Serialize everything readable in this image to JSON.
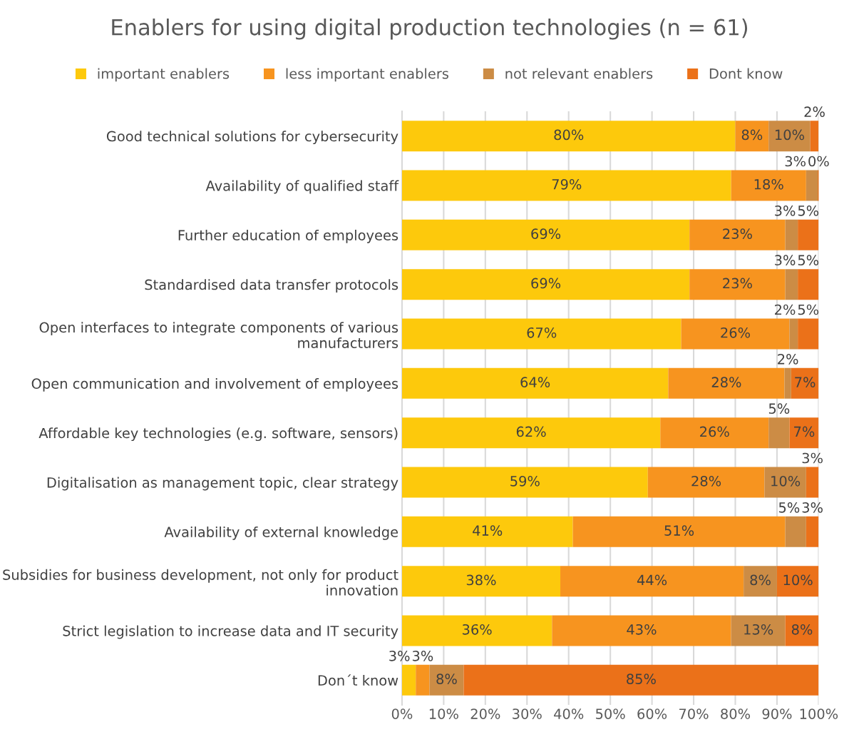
{
  "chart_data": {
    "type": "bar",
    "orientation": "horizontal",
    "stacked": true,
    "title": "Enablers for using digital production technologies (n = 61)",
    "categories": [
      "Good technical solutions for cybersecurity",
      "Availability of qualified staff",
      "Further education of employees",
      "Standardised data transfer protocols",
      "Open interfaces to integrate components of various manufacturers",
      "Open communication and involvement of employees",
      "Affordable key technologies (e.g. software, sensors)",
      "Digitalisation as management topic, clear strategy",
      "Availability of external knowledge",
      "Subsidies for business development, not only for product innovation",
      "Strict legislation to increase data and IT security",
      "Don´t know"
    ],
    "series": [
      {
        "name": "important enablers",
        "color": "#fdc90c",
        "values": [
          80,
          79,
          69,
          69,
          67,
          63.9,
          62,
          59,
          41,
          38,
          36,
          3.3
        ],
        "value_labels": [
          "80%",
          "79%",
          "69%",
          "69%",
          "67%",
          "64%",
          "62%",
          "59%",
          "41%",
          "38%",
          "36%",
          "3%"
        ]
      },
      {
        "name": "less important enablers",
        "color": "#f7941f",
        "values": [
          8,
          18,
          23,
          23,
          26,
          27.9,
          26,
          28,
          51,
          44,
          43,
          3.3
        ],
        "value_labels": [
          "8%",
          "18%",
          "23%",
          "23%",
          "26%",
          "28%",
          "26%",
          "28%",
          "51%",
          "44%",
          "43%",
          "3%"
        ]
      },
      {
        "name": "not relevant enablers",
        "color": "#cc8c45",
        "values": [
          10,
          3,
          3,
          3,
          2,
          1.6,
          5,
          10,
          5,
          8,
          13,
          8.2
        ],
        "value_labels": [
          "10%",
          "3%",
          "3%",
          "3%",
          "2%",
          "2%",
          "5%",
          "10%",
          "5%",
          "8%",
          "13%",
          "8%"
        ]
      },
      {
        "name": "Dont know",
        "color": "#eb7119",
        "values": [
          2,
          0,
          5,
          5,
          5,
          6.6,
          7,
          3,
          3,
          10,
          8,
          85.2
        ],
        "value_labels": [
          "2%",
          "0%",
          "5%",
          "5%",
          "5%",
          "7%",
          "7%",
          "3%",
          "3%",
          "10%",
          "8%",
          "85%"
        ]
      }
    ],
    "xlim": [
      0,
      100
    ],
    "xticks": [
      {
        "value": 0,
        "label": "0%"
      },
      {
        "value": 10,
        "label": "10%"
      },
      {
        "value": 20,
        "label": "20%"
      },
      {
        "value": 30,
        "label": "30%"
      },
      {
        "value": 40,
        "label": "40%"
      },
      {
        "value": 50,
        "label": "50%"
      },
      {
        "value": 60,
        "label": "60%"
      },
      {
        "value": 70,
        "label": "70%"
      },
      {
        "value": 80,
        "label": "80%"
      },
      {
        "value": 90,
        "label": "90%"
      },
      {
        "value": 100,
        "label": "100%"
      }
    ],
    "grid": "x",
    "legend": "top"
  }
}
